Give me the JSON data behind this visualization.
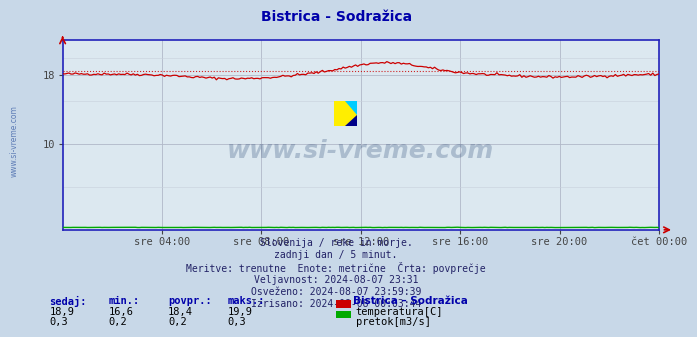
{
  "title": "Bistrica - Sodražica",
  "title_color": "#0000aa",
  "fig_bg_color": "#c8d8e8",
  "plot_bg_color": "#dce8f0",
  "grid_color": "#b0b8c8",
  "grid_color_minor": "#c8d0dc",
  "axis_color": "#2222bb",
  "xtick_labels": [
    "sre 04:00",
    "sre 08:00",
    "sre 12:00",
    "sre 16:00",
    "sre 20:00",
    "čet 00:00"
  ],
  "xtick_positions": [
    4,
    8,
    12,
    16,
    20,
    24
  ],
  "ytick_labels": [
    "10",
    "18"
  ],
  "ytick_positions": [
    10,
    18
  ],
  "ylim": [
    0,
    22
  ],
  "xlim": [
    0,
    24
  ],
  "temp_color": "#cc0000",
  "temp_avg": 18.4,
  "flow_color": "#00aa00",
  "watermark_text": "www.si-vreme.com",
  "watermark_color": "#1a3a6a",
  "watermark_alpha": 0.25,
  "watermark_fontsize": 18,
  "sidebar_text": "www.si-vreme.com",
  "sidebar_color": "#4466aa",
  "info_lines": [
    "Slovenija / reke in morje.",
    "zadnji dan / 5 minut.",
    "Meritve: trenutne  Enote: metrične  Črta: povprečje",
    "Veljavnost: 2024-08-07 23:31",
    "Osveženo: 2024-08-07 23:59:39",
    "Izrisano: 2024-08-08 00:03:44"
  ],
  "info_color": "#222266",
  "info_fontsize": 7,
  "table_headers": [
    "sedaj:",
    "min.:",
    "povpr.:",
    "maks.:"
  ],
  "table_header_color": "#0000aa",
  "temp_row": [
    "18,9",
    "16,6",
    "18,4",
    "19,9"
  ],
  "flow_row": [
    "0,3",
    "0,2",
    "0,2",
    "0,3"
  ],
  "table_val_color": "#000000",
  "legend_title": "Bistrica – Sodražica",
  "legend_temp_label": "temperatura[C]",
  "legend_flow_label": "pretok[m3/s]",
  "legend_color": "#0000aa",
  "arrow_color": "#cc0000"
}
